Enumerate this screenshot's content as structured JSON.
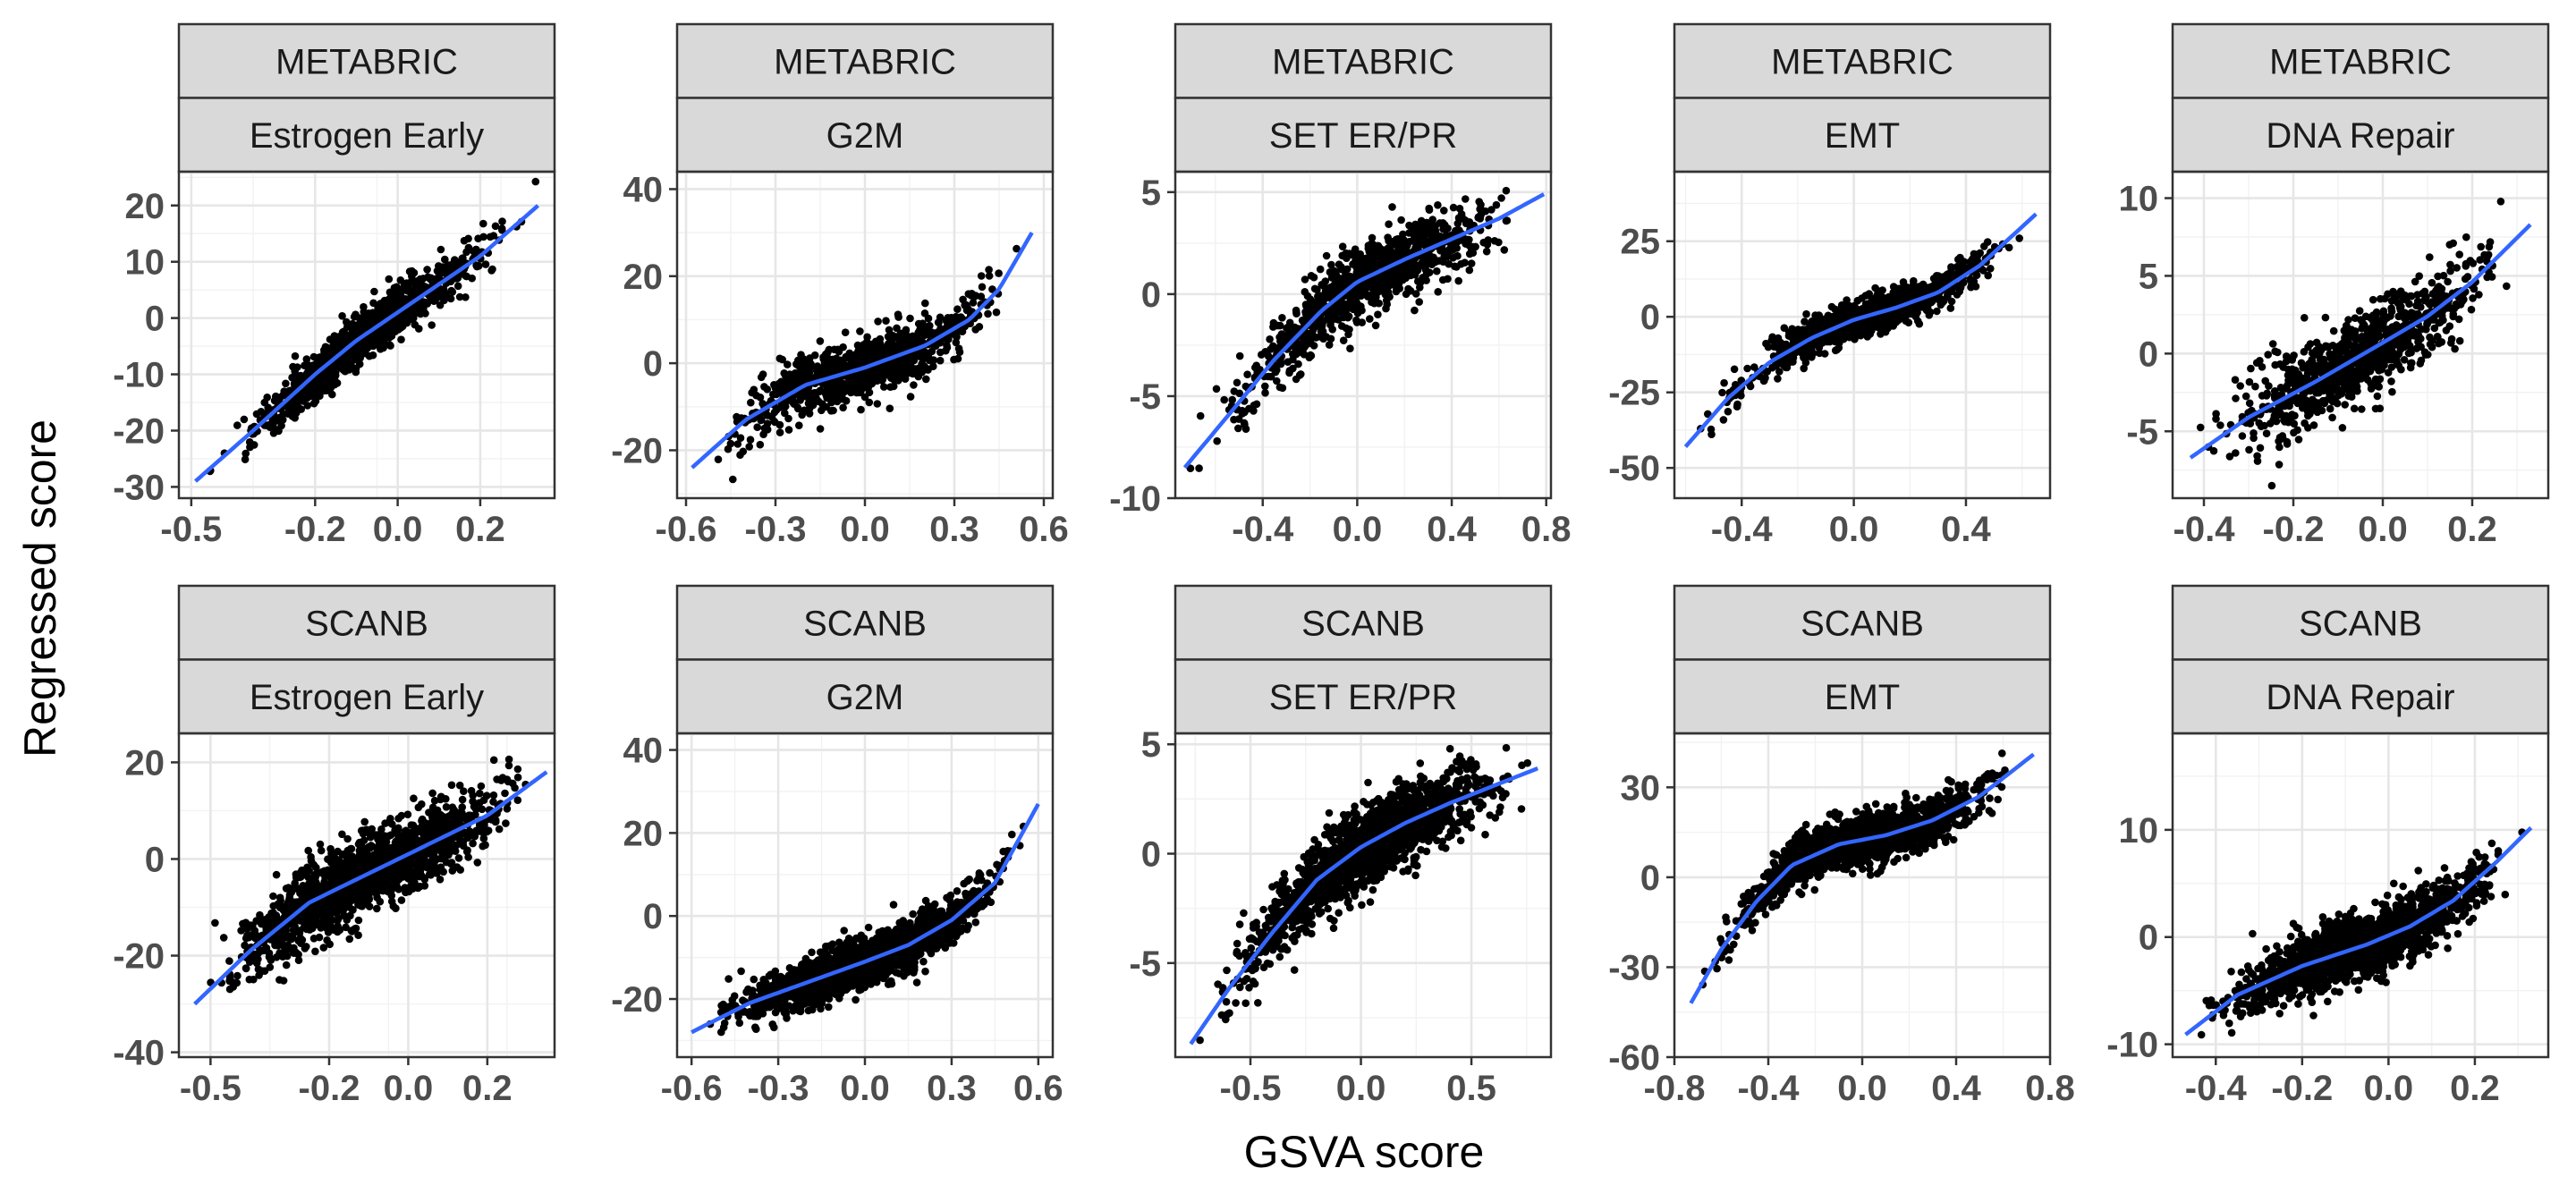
{
  "chart_data": [
    {
      "type": "scatter",
      "strip": [
        "METABRIC",
        "Estrogen Early"
      ],
      "xlim": [
        -0.53,
        0.38
      ],
      "ylim": [
        -32,
        26
      ],
      "xticks": [
        {
          "v": -0.5,
          "l": "-0.5"
        },
        {
          "v": -0.2,
          "l": "-0.2"
        },
        {
          "v": 0.0,
          "l": "0.0"
        },
        {
          "v": 0.2,
          "l": "0.2"
        }
      ],
      "yticks": [
        {
          "v": -30,
          "l": "-30"
        },
        {
          "v": -20,
          "l": "-20"
        },
        {
          "v": -10,
          "l": "-10"
        },
        {
          "v": 0,
          "l": "0"
        },
        {
          "v": 10,
          "l": "10"
        },
        {
          "v": 20,
          "l": "20"
        }
      ],
      "smooth": {
        "x": [
          -0.49,
          -0.35,
          -0.2,
          -0.1,
          0.0,
          0.1,
          0.2,
          0.34
        ],
        "y": [
          -29,
          -20,
          -10,
          -4,
          1,
          6,
          11,
          20
        ]
      },
      "n": 900,
      "noise": 2.2
    },
    {
      "type": "scatter",
      "strip": [
        "METABRIC",
        "G2M"
      ],
      "xlim": [
        -0.63,
        0.63
      ],
      "ylim": [
        -31,
        44
      ],
      "xticks": [
        {
          "v": -0.6,
          "l": "-0.6"
        },
        {
          "v": -0.3,
          "l": "-0.3"
        },
        {
          "v": 0.0,
          "l": "0.0"
        },
        {
          "v": 0.3,
          "l": "0.3"
        },
        {
          "v": 0.6,
          "l": "0.6"
        }
      ],
      "yticks": [
        {
          "v": -20,
          "l": "-20"
        },
        {
          "v": 0,
          "l": "0"
        },
        {
          "v": 20,
          "l": "20"
        },
        {
          "v": 40,
          "l": "40"
        }
      ],
      "smooth": {
        "x": [
          -0.58,
          -0.4,
          -0.2,
          0.0,
          0.2,
          0.35,
          0.45,
          0.56
        ],
        "y": [
          -24,
          -13,
          -5,
          -1,
          4,
          10,
          17,
          30
        ]
      },
      "n": 900,
      "noise": 3.5
    },
    {
      "type": "scatter",
      "strip": [
        "METABRIC",
        "SET ER/PR"
      ],
      "xlim": [
        -0.77,
        0.82
      ],
      "ylim": [
        -10,
        6
      ],
      "xticks": [
        {
          "v": -0.4,
          "l": "-0.4"
        },
        {
          "v": 0.0,
          "l": "0.0"
        },
        {
          "v": 0.4,
          "l": "0.4"
        },
        {
          "v": 0.8,
          "l": "0.8"
        }
      ],
      "yticks": [
        {
          "v": -10,
          "l": "-10"
        },
        {
          "v": -5,
          "l": "-5"
        },
        {
          "v": 0,
          "l": "0"
        },
        {
          "v": 5,
          "l": "5"
        }
      ],
      "smooth": {
        "x": [
          -0.73,
          -0.55,
          -0.35,
          -0.15,
          0.0,
          0.2,
          0.4,
          0.6,
          0.79
        ],
        "y": [
          -8.5,
          -6.0,
          -3.2,
          -0.8,
          0.6,
          1.7,
          2.7,
          3.7,
          4.9
        ]
      },
      "n": 900,
      "noise": 0.9
    },
    {
      "type": "scatter",
      "strip": [
        "METABRIC",
        "EMT"
      ],
      "xlim": [
        -0.64,
        0.7
      ],
      "ylim": [
        -60,
        48
      ],
      "xticks": [
        {
          "v": -0.4,
          "l": "-0.4"
        },
        {
          "v": 0.0,
          "l": "0.0"
        },
        {
          "v": 0.4,
          "l": "0.4"
        }
      ],
      "yticks": [
        {
          "v": -50,
          "l": "-50"
        },
        {
          "v": -25,
          "l": "-25"
        },
        {
          "v": 0,
          "l": "0"
        },
        {
          "v": 25,
          "l": "25"
        }
      ],
      "smooth": {
        "x": [
          -0.6,
          -0.45,
          -0.3,
          -0.15,
          0.0,
          0.15,
          0.3,
          0.45,
          0.65
        ],
        "y": [
          -43,
          -27,
          -15,
          -7,
          -1,
          3,
          8,
          17,
          34
        ]
      },
      "n": 900,
      "noise": 3.2
    },
    {
      "type": "scatter",
      "strip": [
        "METABRIC",
        "DNA Repair"
      ],
      "xlim": [
        -0.47,
        0.37
      ],
      "ylim": [
        -9.3,
        11.7
      ],
      "xticks": [
        {
          "v": -0.4,
          "l": "-0.4"
        },
        {
          "v": -0.2,
          "l": "-0.2"
        },
        {
          "v": 0.0,
          "l": "0.0"
        },
        {
          "v": 0.2,
          "l": "0.2"
        }
      ],
      "yticks": [
        {
          "v": -5,
          "l": "-5"
        },
        {
          "v": 0,
          "l": "0"
        },
        {
          "v": 5,
          "l": "5"
        },
        {
          "v": 10,
          "l": "10"
        }
      ],
      "smooth": {
        "x": [
          -0.43,
          -0.3,
          -0.15,
          0.0,
          0.1,
          0.2,
          0.33
        ],
        "y": [
          -6.7,
          -4.1,
          -1.8,
          0.7,
          2.4,
          4.6,
          8.3
        ]
      },
      "n": 900,
      "noise": 1.4
    },
    {
      "type": "scatter",
      "strip": [
        "SCANB",
        "Estrogen Early"
      ],
      "xlim": [
        -0.58,
        0.37
      ],
      "ylim": [
        -41,
        26
      ],
      "xticks": [
        {
          "v": -0.5,
          "l": "-0.5"
        },
        {
          "v": -0.2,
          "l": "-0.2"
        },
        {
          "v": 0.0,
          "l": "0.0"
        },
        {
          "v": 0.2,
          "l": "0.2"
        }
      ],
      "yticks": [
        {
          "v": -40,
          "l": "-40"
        },
        {
          "v": -20,
          "l": "-20"
        },
        {
          "v": 0,
          "l": "0"
        },
        {
          "v": 20,
          "l": "20"
        }
      ],
      "smooth": {
        "x": [
          -0.54,
          -0.4,
          -0.25,
          -0.1,
          0.0,
          0.1,
          0.2,
          0.35
        ],
        "y": [
          -30,
          -19,
          -9,
          -3,
          1,
          5,
          9,
          18
        ]
      },
      "n": 1600,
      "noise": 4.0
    },
    {
      "type": "scatter",
      "strip": [
        "SCANB",
        "G2M"
      ],
      "xlim": [
        -0.65,
        0.65
      ],
      "ylim": [
        -34,
        44
      ],
      "xticks": [
        {
          "v": -0.6,
          "l": "-0.6"
        },
        {
          "v": -0.3,
          "l": "-0.3"
        },
        {
          "v": 0.0,
          "l": "0.0"
        },
        {
          "v": 0.3,
          "l": "0.3"
        },
        {
          "v": 0.6,
          "l": "0.6"
        }
      ],
      "yticks": [
        {
          "v": -20,
          "l": "-20"
        },
        {
          "v": 0,
          "l": "0"
        },
        {
          "v": 20,
          "l": "20"
        },
        {
          "v": 40,
          "l": "40"
        }
      ],
      "smooth": {
        "x": [
          -0.6,
          -0.4,
          -0.2,
          0.0,
          0.15,
          0.3,
          0.45,
          0.6
        ],
        "y": [
          -28,
          -21,
          -16,
          -11,
          -7,
          -1,
          8,
          27
        ]
      },
      "n": 1600,
      "noise": 2.8
    },
    {
      "type": "scatter",
      "strip": [
        "SCANB",
        "SET ER/PR"
      ],
      "xlim": [
        -0.84,
        0.86
      ],
      "ylim": [
        -9.3,
        5.5
      ],
      "xticks": [
        {
          "v": -0.5,
          "l": "-0.5"
        },
        {
          "v": 0.0,
          "l": "0.0"
        },
        {
          "v": 0.5,
          "l": "0.5"
        }
      ],
      "yticks": [
        {
          "v": -5,
          "l": "-5"
        },
        {
          "v": 0,
          "l": "0"
        },
        {
          "v": 5,
          "l": "5"
        }
      ],
      "smooth": {
        "x": [
          -0.77,
          -0.6,
          -0.4,
          -0.2,
          0.0,
          0.2,
          0.4,
          0.6,
          0.8
        ],
        "y": [
          -8.7,
          -6.2,
          -3.6,
          -1.2,
          0.3,
          1.4,
          2.3,
          3.1,
          3.9
        ]
      },
      "n": 1600,
      "noise": 0.9
    },
    {
      "type": "scatter",
      "strip": [
        "SCANB",
        "EMT"
      ],
      "xlim": [
        -0.8,
        0.8
      ],
      "ylim": [
        -60,
        48
      ],
      "xticks": [
        {
          "v": -0.8,
          "l": "-0.8"
        },
        {
          "v": -0.4,
          "l": "-0.4"
        },
        {
          "v": 0.0,
          "l": "0.0"
        },
        {
          "v": 0.4,
          "l": "0.4"
        },
        {
          "v": 0.8,
          "l": "0.8"
        }
      ],
      "yticks": [
        {
          "v": -60,
          "l": "-60"
        },
        {
          "v": -30,
          "l": "-30"
        },
        {
          "v": 0,
          "l": "0"
        },
        {
          "v": 30,
          "l": "30"
        }
      ],
      "smooth": {
        "x": [
          -0.73,
          -0.6,
          -0.45,
          -0.3,
          -0.1,
          0.1,
          0.3,
          0.5,
          0.73
        ],
        "y": [
          -42,
          -24,
          -8,
          4,
          11,
          14,
          19,
          27,
          41
        ]
      },
      "n": 1600,
      "noise": 4.0
    },
    {
      "type": "scatter",
      "strip": [
        "SCANB",
        "DNA Repair"
      ],
      "xlim": [
        -0.5,
        0.37
      ],
      "ylim": [
        -11.2,
        19
      ],
      "xticks": [
        {
          "v": -0.4,
          "l": "-0.4"
        },
        {
          "v": -0.2,
          "l": "-0.2"
        },
        {
          "v": 0.0,
          "l": "0.0"
        },
        {
          "v": 0.2,
          "l": "0.2"
        }
      ],
      "yticks": [
        {
          "v": -10,
          "l": "-10"
        },
        {
          "v": 0,
          "l": "0"
        },
        {
          "v": 10,
          "l": "10"
        }
      ],
      "smooth": {
        "x": [
          -0.47,
          -0.35,
          -0.2,
          -0.05,
          0.05,
          0.15,
          0.25,
          0.33
        ],
        "y": [
          -9.1,
          -5.4,
          -2.7,
          -0.7,
          1.0,
          3.4,
          7.0,
          10.2
        ]
      },
      "n": 1600,
      "noise": 1.4
    }
  ],
  "labels": {
    "xlabel": "GSVA score",
    "ylabel": "Regressed score"
  }
}
